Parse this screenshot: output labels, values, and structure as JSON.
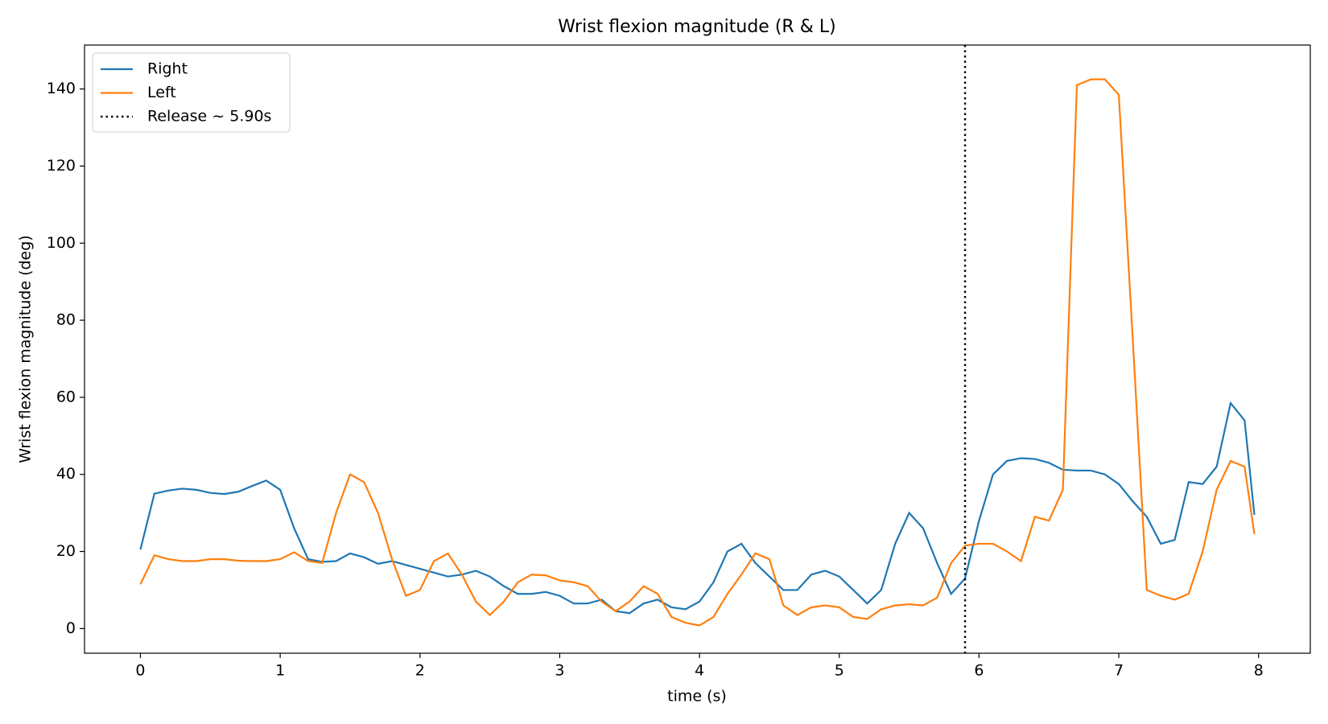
{
  "chart_data": {
    "type": "line",
    "title": "Wrist flexion magnitude (R & L)",
    "xlabel": "time (s)",
    "ylabel": "Wrist flexion magnitude (deg)",
    "x": [
      0,
      0.1,
      0.2,
      0.3,
      0.4,
      0.5,
      0.6,
      0.7,
      0.8,
      0.9,
      1,
      1.1,
      1.2,
      1.3,
      1.4,
      1.5,
      1.6,
      1.7,
      1.8,
      1.9,
      2,
      2.1,
      2.2,
      2.3,
      2.4,
      2.5,
      2.6,
      2.7,
      2.8,
      2.9,
      3,
      3.1,
      3.2,
      3.3,
      3.4,
      3.5,
      3.6,
      3.7,
      3.8,
      3.9,
      4,
      4.1,
      4.2,
      4.3,
      4.4,
      4.5,
      4.6,
      4.7,
      4.8,
      4.9,
      5,
      5.1,
      5.2,
      5.3,
      5.4,
      5.5,
      5.6,
      5.7,
      5.8,
      5.9,
      6,
      6.1,
      6.2,
      6.3,
      6.4,
      6.5,
      6.6,
      6.7,
      6.8,
      6.9,
      7,
      7.1,
      7.2,
      7.3,
      7.4,
      7.5,
      7.6,
      7.7,
      7.8,
      7.9,
      7.97
    ],
    "series": [
      {
        "name": "Right",
        "color": "#1f77b4",
        "values": [
          20.5,
          35,
          35.8,
          36.3,
          36,
          35.2,
          34.9,
          35.5,
          37,
          38.4,
          36,
          26,
          18,
          17.3,
          17.5,
          19.5,
          18.5,
          16.8,
          17.5,
          16.5,
          15.5,
          14.5,
          13.5,
          14,
          15,
          13.5,
          11,
          9,
          9,
          9.5,
          8.5,
          6.5,
          6.5,
          7.5,
          4.5,
          4,
          6.5,
          7.5,
          5.5,
          5,
          7,
          12,
          20,
          22,
          17,
          13.5,
          10,
          10,
          14,
          15,
          13.5,
          10,
          6.5,
          10,
          22,
          30,
          26,
          17,
          9,
          13,
          28,
          40,
          43.5,
          44.2,
          44,
          43,
          41.2,
          41,
          41,
          40,
          37.5,
          33,
          29,
          22,
          23,
          38,
          37.5,
          42,
          58.5,
          54,
          29.5
        ]
      },
      {
        "name": "Left",
        "color": "#ff7f0e",
        "values": [
          11.5,
          19,
          18,
          17.5,
          17.5,
          18,
          18,
          17.6,
          17.5,
          17.5,
          18,
          19.8,
          17.5,
          17,
          30,
          40,
          38,
          30,
          18,
          8.5,
          10,
          17.5,
          19.5,
          14,
          7,
          3.5,
          7,
          12,
          14,
          13.8,
          12.5,
          12,
          11,
          7,
          4.5,
          7,
          11,
          9,
          3,
          1.5,
          0.8,
          3,
          9,
          14,
          19.5,
          18,
          6,
          3.5,
          5.5,
          6,
          5.5,
          3,
          2.5,
          5,
          6,
          6.3,
          6,
          8,
          17,
          21.5,
          22,
          22,
          20,
          17.5,
          29,
          28,
          36,
          141,
          142.5,
          142.5,
          138.5,
          75,
          10,
          8.5,
          7.5,
          9,
          20,
          36,
          43.5,
          42,
          24.5
        ]
      }
    ],
    "vline": {
      "x": 5.9,
      "label": "Release ~ 5.90s",
      "color": "#000000"
    },
    "xlim": [
      -0.4,
      8.37
    ],
    "xticks": [
      0,
      1,
      2,
      3,
      4,
      5,
      6,
      7,
      8
    ],
    "ylim": [
      -6.4,
      151.4
    ],
    "yticks": [
      0,
      20,
      40,
      60,
      80,
      100,
      120,
      140
    ],
    "legend": "upper-left"
  }
}
